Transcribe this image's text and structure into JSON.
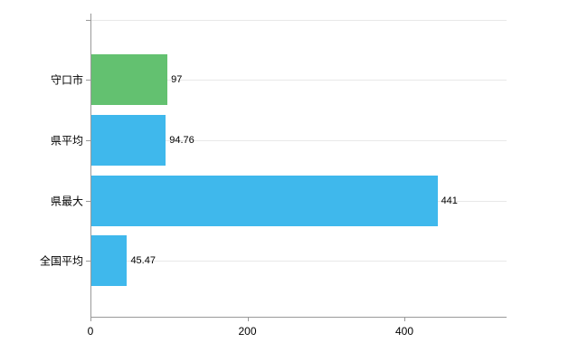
{
  "chart_data": {
    "type": "bar",
    "orientation": "horizontal",
    "title": "",
    "xlabel": "",
    "ylabel": "",
    "categories": [
      "守口市",
      "県平均",
      "県最大",
      "全国平均"
    ],
    "values": [
      97,
      94.76,
      441,
      45.47
    ],
    "value_labels": [
      "97",
      "94.76",
      "441",
      "45.47"
    ],
    "bar_colors": [
      "#63c170",
      "#3fb8ec",
      "#3fb8ec",
      "#3fb8ec"
    ],
    "xlim": [
      0,
      530
    ],
    "x_ticks": [
      0,
      200,
      400
    ],
    "x_tick_labels": [
      "0",
      "200",
      "400"
    ],
    "grid": true,
    "legend_position": "none"
  },
  "colors": {
    "background": "#ffffff",
    "axis": "#999999",
    "grid": "#e8e8e8",
    "text": "#000000"
  }
}
